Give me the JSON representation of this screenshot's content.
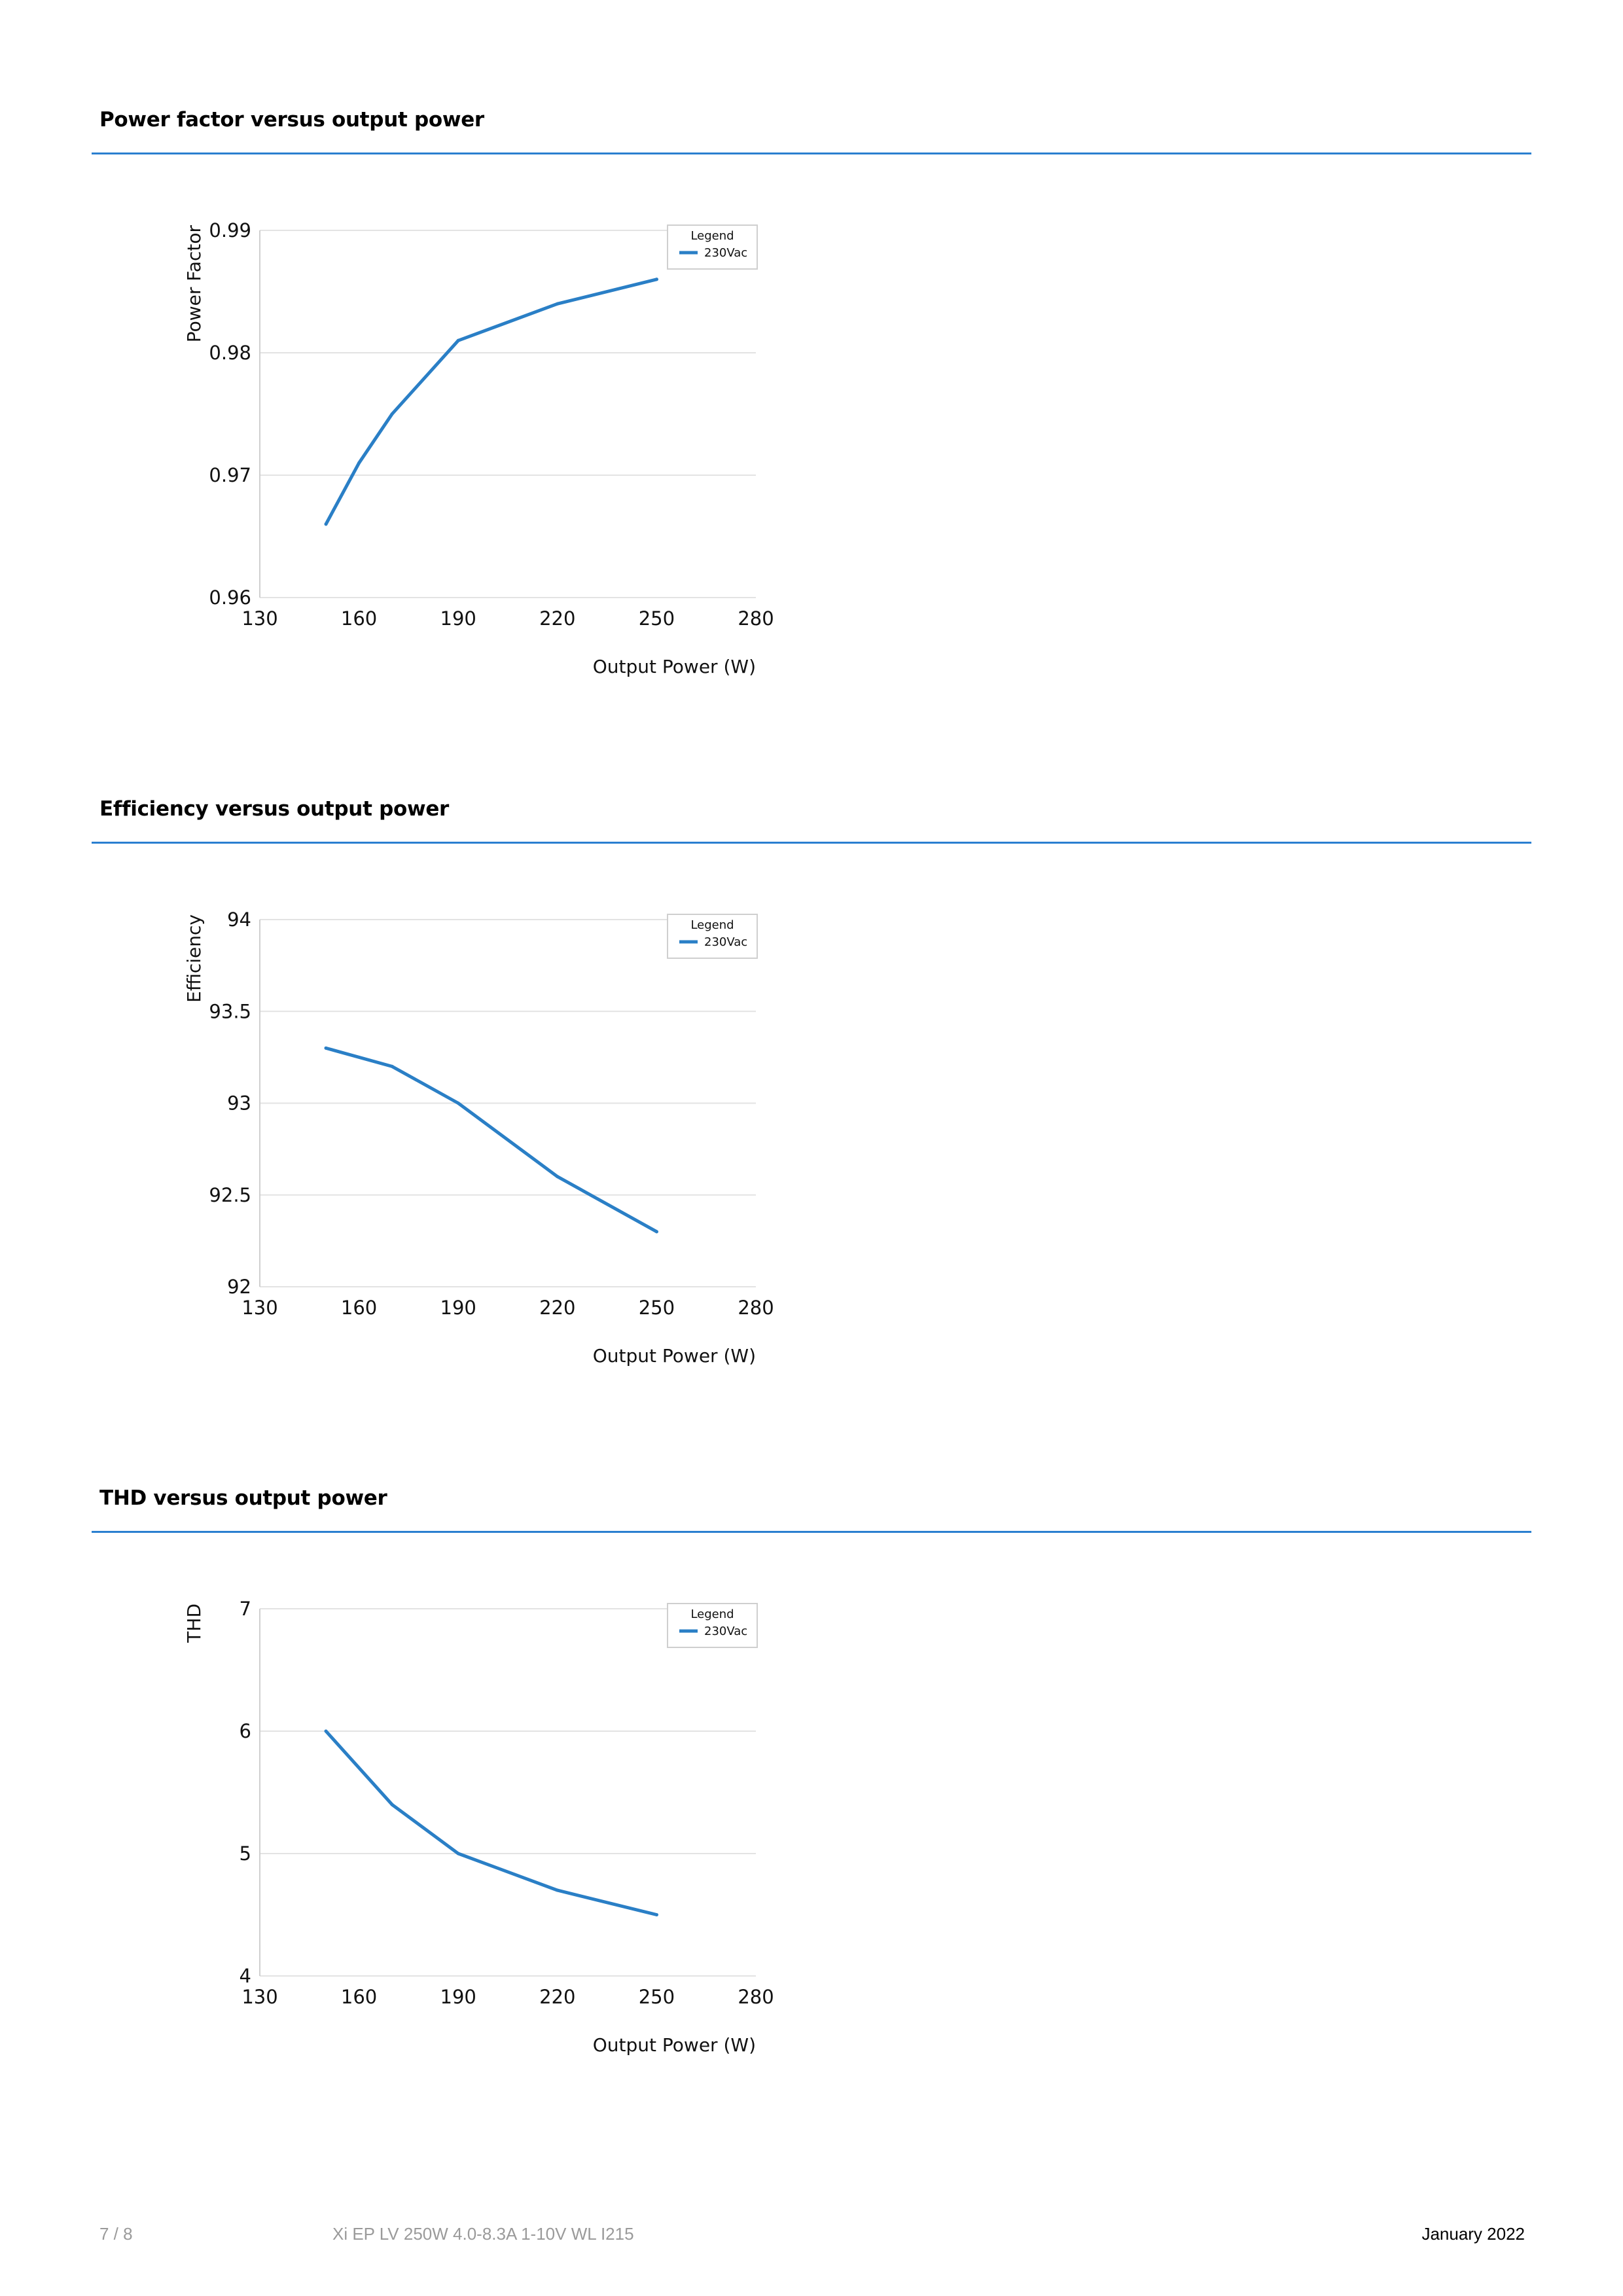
{
  "sections": [
    {
      "title": "Power factor versus output power"
    },
    {
      "title": "Efficiency versus output power"
    },
    {
      "title": "THD versus output power"
    }
  ],
  "chart_data": [
    {
      "type": "line",
      "title": "",
      "xlabel": "Output Power (W)",
      "ylabel": "Power Factor",
      "xlim": [
        130,
        280
      ],
      "ylim": [
        0.96,
        0.99
      ],
      "x_ticks": [
        "130",
        "160",
        "190",
        "220",
        "250",
        "280"
      ],
      "y_ticks": [
        "0.96",
        "0.97",
        "0.98",
        "0.99"
      ],
      "grid": true,
      "legend": {
        "title": "Legend",
        "placement": "top-right"
      },
      "series": [
        {
          "name": "230Vac",
          "color": "#2a7fc6",
          "x": [
            150,
            160,
            170,
            190,
            220,
            250
          ],
          "y": [
            0.966,
            0.971,
            0.975,
            0.981,
            0.984,
            0.986
          ]
        }
      ]
    },
    {
      "type": "line",
      "title": "",
      "xlabel": "Output Power (W)",
      "ylabel": "Efficiency",
      "xlim": [
        130,
        280
      ],
      "ylim": [
        92,
        94
      ],
      "x_ticks": [
        "130",
        "160",
        "190",
        "220",
        "250",
        "280"
      ],
      "y_ticks": [
        "92",
        "92.5",
        "93",
        "93.5",
        "94"
      ],
      "grid": true,
      "legend": {
        "title": "Legend",
        "placement": "top-right"
      },
      "series": [
        {
          "name": "230Vac",
          "color": "#2a7fc6",
          "x": [
            150,
            170,
            190,
            220,
            250
          ],
          "y": [
            93.3,
            93.2,
            93.0,
            92.6,
            92.3
          ]
        }
      ]
    },
    {
      "type": "line",
      "title": "",
      "xlabel": "Output Power (W)",
      "ylabel": "THD",
      "xlim": [
        130,
        280
      ],
      "ylim": [
        4,
        7
      ],
      "x_ticks": [
        "130",
        "160",
        "190",
        "220",
        "250",
        "280"
      ],
      "y_ticks": [
        "4",
        "5",
        "6",
        "7"
      ],
      "grid": true,
      "legend": {
        "title": "Legend",
        "placement": "top-right"
      },
      "series": [
        {
          "name": "230Vac",
          "color": "#2a7fc6",
          "x": [
            150,
            170,
            190,
            220,
            250
          ],
          "y": [
            6.0,
            5.4,
            5.0,
            4.7,
            4.5
          ]
        }
      ]
    }
  ],
  "footer": {
    "page": "7 / 8",
    "product": "Xi EP LV 250W 4.0-8.3A 1-10V WL I215",
    "date": "January 2022"
  },
  "colors": {
    "accent": "#2a7fd0",
    "line": "#2a7fc6",
    "grid": "#e3e3e3",
    "footer_grey": "#9a9a9a"
  }
}
